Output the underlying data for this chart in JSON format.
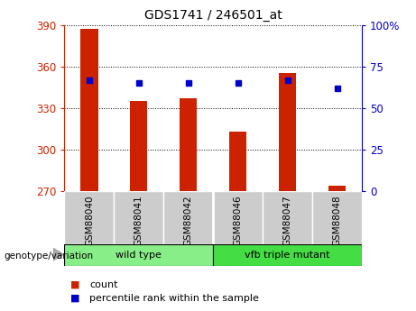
{
  "title": "GDS1741 / 246501_at",
  "categories": [
    "GSM88040",
    "GSM88041",
    "GSM88042",
    "GSM88046",
    "GSM88047",
    "GSM88048"
  ],
  "count_values": [
    387,
    335,
    337,
    313,
    355,
    274
  ],
  "percentile_values": [
    67,
    65,
    65,
    65,
    67,
    62
  ],
  "ylim_left": [
    270,
    390
  ],
  "ylim_right": [
    0,
    100
  ],
  "yticks_left": [
    270,
    300,
    330,
    360,
    390
  ],
  "yticks_right": [
    0,
    25,
    50,
    75,
    100
  ],
  "ytick_right_labels": [
    "0",
    "25",
    "50",
    "75",
    "100%"
  ],
  "bar_color": "#cc2200",
  "dot_color": "#0000cc",
  "groups": [
    {
      "label": "wild type",
      "color": "#88ee88",
      "start": 0,
      "end": 3
    },
    {
      "label": "vfb triple mutant",
      "color": "#44dd44",
      "start": 3,
      "end": 6
    }
  ],
  "sample_row_color": "#cccccc",
  "legend_count_color": "#cc2200",
  "legend_pct_color": "#0000cc",
  "genotype_label": "genotype/variation",
  "bar_width": 0.35,
  "title_fontsize": 10,
  "tick_fontsize": 8.5,
  "cat_fontsize": 7.5,
  "group_fontsize": 8,
  "legend_fontsize": 8
}
